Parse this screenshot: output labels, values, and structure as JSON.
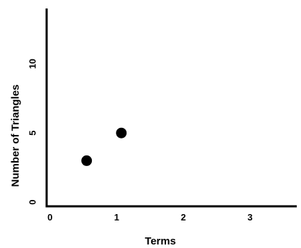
{
  "chart_data": {
    "type": "scatter",
    "title": "",
    "xlabel": "Terms",
    "ylabel": "Number of Triangles",
    "xlim": [
      -0.05,
      3.7
    ],
    "ylim": [
      -0.3,
      14
    ],
    "x_ticks": [
      0,
      1,
      2,
      3
    ],
    "x_tick_labels": [
      "0",
      "1",
      "2",
      "3"
    ],
    "y_ticks": [
      0,
      5,
      10
    ],
    "y_tick_labels": [
      "0",
      "5",
      "10"
    ],
    "grid": false,
    "legend": "none",
    "series": [
      {
        "x": [
          0.55,
          1.07
        ],
        "y": [
          3,
          5
        ],
        "color": "#000000"
      }
    ]
  }
}
